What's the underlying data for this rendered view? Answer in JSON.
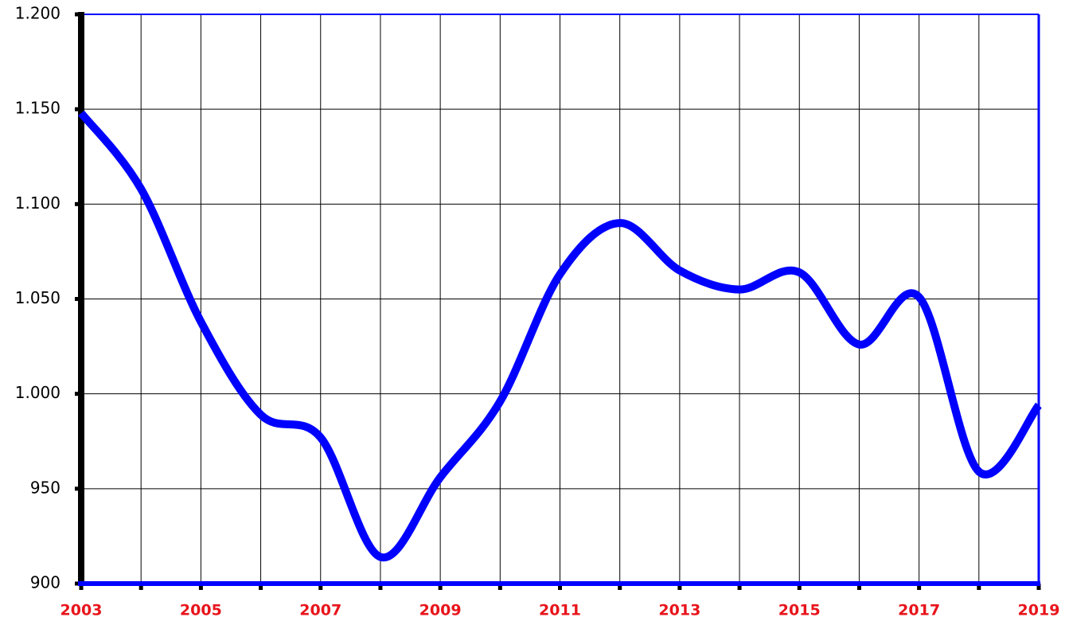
{
  "chart_data": {
    "type": "line",
    "x": [
      2003,
      2004,
      2005,
      2006,
      2007,
      2008,
      2009,
      2010,
      2011,
      2012,
      2013,
      2014,
      2015,
      2016,
      2017,
      2018,
      2019
    ],
    "series": [
      {
        "color": "#0000ff",
        "values": [
          1148,
          1108,
          1038,
          989,
          977,
          914,
          956,
          996,
          1063,
          1090,
          1065,
          1055,
          1064,
          1026,
          1051,
          959,
          994
        ]
      }
    ],
    "xlim": [
      2003,
      2019
    ],
    "xticks": [
      2003,
      2005,
      2007,
      2009,
      2011,
      2013,
      2015,
      2017,
      2019
    ],
    "xminorticks": [
      2004,
      2006,
      2008,
      2010,
      2012,
      2014,
      2016,
      2018
    ],
    "ylim": [
      900,
      1200
    ],
    "yticks": [
      900,
      950,
      {
        "value": 1000,
        "label": "1.000"
      },
      {
        "value": 1050,
        "label": "1.050"
      },
      {
        "value": 1100,
        "label": "1.100"
      },
      {
        "value": 1150,
        "label": "1.150"
      },
      {
        "value": 1200,
        "label": "1.200"
      }
    ],
    "grid": true
  }
}
